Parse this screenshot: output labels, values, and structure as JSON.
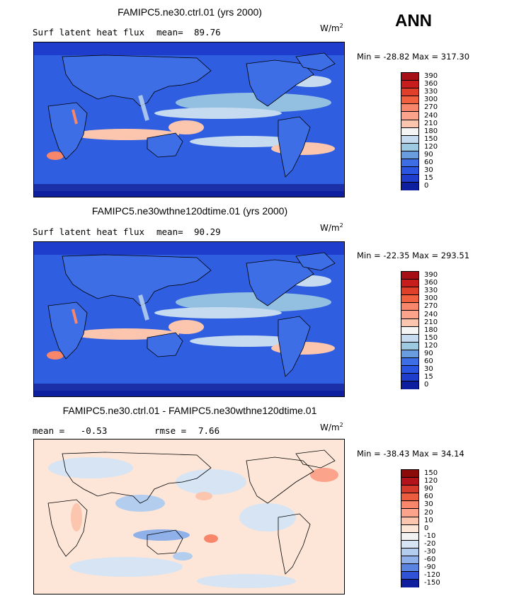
{
  "season": "ANN",
  "panels": [
    {
      "title": "FAMIPC5.ne30.ctrl.01 (yrs 2000)",
      "left_label": "Surf latent heat flux",
      "mean_label": "mean=",
      "mean_value": "89.76",
      "units": "W/m",
      "units_sup": "2",
      "min_max": "Min = -28.82 Max = 317.30",
      "legend_levels": [
        "390",
        "360",
        "330",
        "300",
        "270",
        "240",
        "210",
        "180",
        "150",
        "120",
        "90",
        "60",
        "30",
        "15",
        "0"
      ],
      "legend_colors": [
        "#a50f15",
        "#c81d1d",
        "#e0402a",
        "#f2613f",
        "#f7866a",
        "#fba48b",
        "#fcc5ad",
        "#f5f5f5",
        "#c6dbef",
        "#9ecae1",
        "#6a9de0",
        "#3d6ee6",
        "#2955e0",
        "#1f3dcc",
        "#0d1f9e"
      ]
    },
    {
      "title": "FAMIPC5.ne30wthne120dtime.01 (yrs 2000)",
      "left_label": "Surf latent heat flux",
      "mean_label": "mean=",
      "mean_value": "90.29",
      "units": "W/m",
      "units_sup": "2",
      "min_max": "Min = -22.35 Max = 293.51",
      "legend_levels": [
        "390",
        "360",
        "330",
        "300",
        "270",
        "240",
        "210",
        "180",
        "150",
        "120",
        "90",
        "60",
        "30",
        "15",
        "0"
      ],
      "legend_colors": [
        "#a50f15",
        "#c81d1d",
        "#e0402a",
        "#f2613f",
        "#f7866a",
        "#fba48b",
        "#fcc5ad",
        "#f5f5f5",
        "#c6dbef",
        "#9ecae1",
        "#6a9de0",
        "#3d6ee6",
        "#2955e0",
        "#1f3dcc",
        "#0d1f9e"
      ]
    },
    {
      "title": "FAMIPC5.ne30.ctrl.01 - FAMIPC5.ne30wthne120dtime.01",
      "left_label": "mean =   -0.53",
      "mean_label": "rmse =",
      "mean_value": "7.66",
      "units": "W/m",
      "units_sup": "2",
      "min_max": "Min = -38.43 Max =  34.14",
      "legend_levels": [
        "150",
        "120",
        "90",
        "60",
        "30",
        "20",
        "10",
        "0",
        "-10",
        "-20",
        "-30",
        "-60",
        "-90",
        "-120",
        "-150"
      ],
      "legend_colors": [
        "#8b0a0a",
        "#b3141c",
        "#d63a2b",
        "#ec5c3f",
        "#f7866a",
        "#fba48b",
        "#fcc5ad",
        "#fde6d8",
        "#f2f2f2",
        "#d6e4f4",
        "#b3cdee",
        "#8fb0e8",
        "#5a82e0",
        "#2f52d6",
        "#0f1f9e"
      ]
    }
  ]
}
